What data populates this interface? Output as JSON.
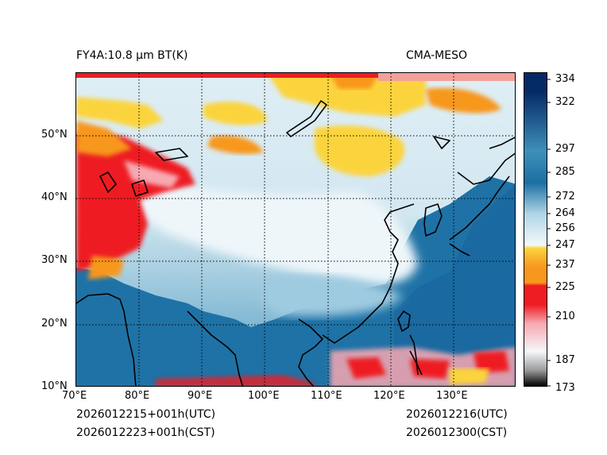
{
  "header": {
    "title_left": "FY4A:10.8 µm BT(K)",
    "title_right": "CMA-MESO"
  },
  "map": {
    "lat_labels": [
      "50°N",
      "40°N",
      "30°N",
      "20°N",
      "10°N"
    ],
    "lon_labels": [
      "70°E",
      "80°E",
      "90°E",
      "100°E",
      "110°E",
      "120°E",
      "130°E"
    ],
    "lon_range": [
      70,
      140
    ],
    "lat_range": [
      10,
      60
    ],
    "gridlines": "dotted"
  },
  "colorbar": {
    "range": [
      173,
      334
    ],
    "tick_labels": [
      "334",
      "322",
      "297",
      "285",
      "272",
      "264",
      "256",
      "247",
      "237",
      "225",
      "210",
      "187",
      "173"
    ],
    "colors": {
      "cold_black": "#000000",
      "gray": "#9a9a9a",
      "pink": "#f7a8b1",
      "red": "#ee1c23",
      "orange": "#f7971d",
      "yellow": "#fbd43e",
      "white": "#f4f8fa",
      "light_blue": "#aed6e6",
      "mid_blue": "#3e8fba",
      "ocean_blue": "#1c6fa3",
      "navy": "#062a66"
    }
  },
  "footer": {
    "left_utc": "2026012215+001h(UTC)",
    "left_cst": "2026012223+001h(CST)",
    "right_utc": "2026012216(UTC)",
    "right_cst": "2026012300(CST)"
  }
}
